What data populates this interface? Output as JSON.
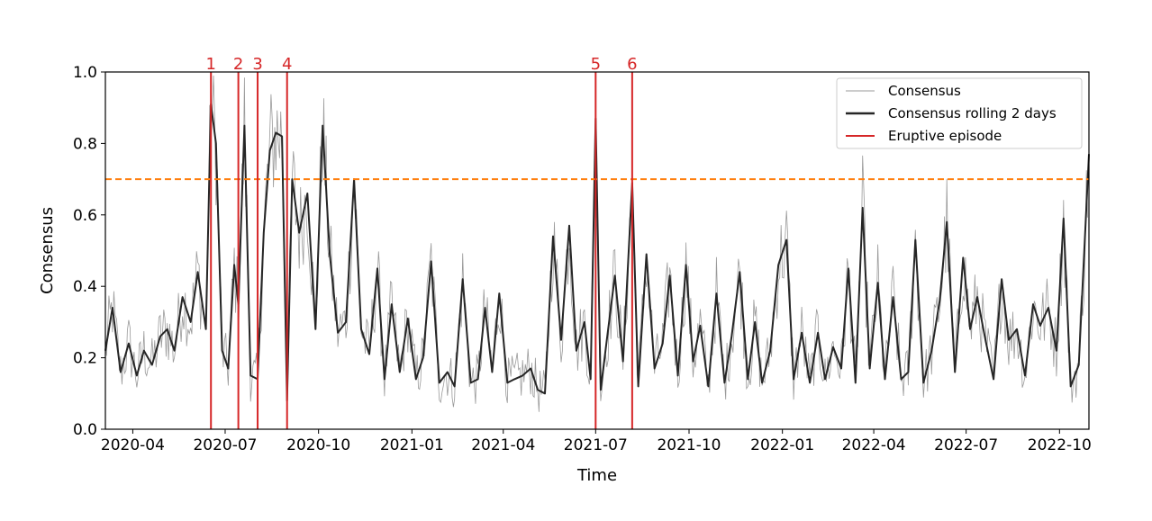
{
  "chart_data": {
    "type": "line",
    "xlabel": "Time",
    "ylabel": "Consensus",
    "xlim": [
      "2020-03-05",
      "2022-10-30"
    ],
    "ylim": [
      0.0,
      1.0
    ],
    "x_ticks": [
      "2020-04",
      "2020-07",
      "2020-10",
      "2021-01",
      "2021-04",
      "2021-07",
      "2021-10",
      "2022-01",
      "2022-04",
      "2022-07",
      "2022-10"
    ],
    "y_ticks": [
      "0.0",
      "0.2",
      "0.4",
      "0.6",
      "0.8",
      "1.0"
    ],
    "threshold": {
      "value": 0.7,
      "color": "#ff7f0e",
      "style": "dashed"
    },
    "legend": {
      "placement": "top-right",
      "entries": [
        "Consensus",
        "Consensus rolling 2 days",
        "Eruptive episode"
      ]
    },
    "colors": {
      "raw": "#9a9a9a",
      "rolling": "#262626",
      "episode": "#d62728",
      "threshold": "#ff7f0e"
    },
    "episodes": [
      {
        "label": "1",
        "date": "2020-06-17"
      },
      {
        "label": "2",
        "date": "2020-07-14"
      },
      {
        "label": "3",
        "date": "2020-08-02"
      },
      {
        "label": "4",
        "date": "2020-08-31"
      },
      {
        "label": "5",
        "date": "2021-07-01"
      },
      {
        "label": "6",
        "date": "2021-08-06"
      }
    ],
    "series": [
      {
        "name": "Consensus rolling 2 days",
        "x": [
          "2020-03-05",
          "2020-03-12",
          "2020-03-20",
          "2020-03-28",
          "2020-04-05",
          "2020-04-12",
          "2020-04-20",
          "2020-04-28",
          "2020-05-05",
          "2020-05-12",
          "2020-05-20",
          "2020-05-28",
          "2020-06-04",
          "2020-06-12",
          "2020-06-17",
          "2020-06-22",
          "2020-06-28",
          "2020-07-04",
          "2020-07-10",
          "2020-07-14",
          "2020-07-20",
          "2020-07-26",
          "2020-08-02",
          "2020-08-08",
          "2020-08-14",
          "2020-08-20",
          "2020-08-26",
          "2020-08-31",
          "2020-09-05",
          "2020-09-12",
          "2020-09-20",
          "2020-09-28",
          "2020-10-05",
          "2020-10-12",
          "2020-10-20",
          "2020-10-28",
          "2020-11-05",
          "2020-11-12",
          "2020-11-20",
          "2020-11-28",
          "2020-12-05",
          "2020-12-12",
          "2020-12-20",
          "2020-12-28",
          "2021-01-05",
          "2021-01-12",
          "2021-01-20",
          "2021-01-28",
          "2021-02-05",
          "2021-02-12",
          "2021-02-20",
          "2021-02-28",
          "2021-03-07",
          "2021-03-14",
          "2021-03-21",
          "2021-03-28",
          "2021-04-05",
          "2021-04-12",
          "2021-04-20",
          "2021-04-28",
          "2021-05-05",
          "2021-05-12",
          "2021-05-20",
          "2021-05-28",
          "2021-06-05",
          "2021-06-12",
          "2021-06-20",
          "2021-06-26",
          "2021-07-01",
          "2021-07-06",
          "2021-07-12",
          "2021-07-20",
          "2021-07-28",
          "2021-08-06",
          "2021-08-12",
          "2021-08-20",
          "2021-08-28",
          "2021-09-05",
          "2021-09-12",
          "2021-09-20",
          "2021-09-28",
          "2021-10-05",
          "2021-10-12",
          "2021-10-20",
          "2021-10-28",
          "2021-11-05",
          "2021-11-12",
          "2021-11-20",
          "2021-11-28",
          "2021-12-05",
          "2021-12-12",
          "2021-12-20",
          "2021-12-28",
          "2022-01-05",
          "2022-01-12",
          "2022-01-20",
          "2022-01-28",
          "2022-02-05",
          "2022-02-12",
          "2022-02-20",
          "2022-02-28",
          "2022-03-07",
          "2022-03-14",
          "2022-03-21",
          "2022-03-28",
          "2022-04-05",
          "2022-04-12",
          "2022-04-20",
          "2022-04-28",
          "2022-05-05",
          "2022-05-12",
          "2022-05-20",
          "2022-05-28",
          "2022-06-05",
          "2022-06-12",
          "2022-06-20",
          "2022-06-28",
          "2022-07-05",
          "2022-07-12",
          "2022-07-20",
          "2022-07-28",
          "2022-08-05",
          "2022-08-12",
          "2022-08-20",
          "2022-08-28",
          "2022-09-05",
          "2022-09-12",
          "2022-09-20",
          "2022-09-28",
          "2022-10-05",
          "2022-10-12",
          "2022-10-20",
          "2022-10-30"
        ],
        "values": [
          0.22,
          0.34,
          0.16,
          0.24,
          0.15,
          0.22,
          0.18,
          0.26,
          0.28,
          0.22,
          0.37,
          0.3,
          0.44,
          0.28,
          0.91,
          0.8,
          0.22,
          0.17,
          0.46,
          0.35,
          0.85,
          0.15,
          0.14,
          0.55,
          0.78,
          0.83,
          0.82,
          0.08,
          0.7,
          0.55,
          0.66,
          0.28,
          0.85,
          0.49,
          0.27,
          0.3,
          0.7,
          0.28,
          0.21,
          0.45,
          0.14,
          0.35,
          0.16,
          0.31,
          0.14,
          0.2,
          0.47,
          0.13,
          0.16,
          0.12,
          0.42,
          0.13,
          0.14,
          0.34,
          0.16,
          0.38,
          0.13,
          0.14,
          0.15,
          0.17,
          0.11,
          0.1,
          0.54,
          0.25,
          0.57,
          0.22,
          0.3,
          0.14,
          0.87,
          0.11,
          0.25,
          0.43,
          0.19,
          0.69,
          0.12,
          0.49,
          0.17,
          0.24,
          0.43,
          0.15,
          0.46,
          0.19,
          0.29,
          0.12,
          0.38,
          0.13,
          0.26,
          0.44,
          0.14,
          0.3,
          0.13,
          0.22,
          0.46,
          0.53,
          0.14,
          0.27,
          0.13,
          0.27,
          0.14,
          0.23,
          0.17,
          0.45,
          0.13,
          0.62,
          0.17,
          0.41,
          0.14,
          0.37,
          0.14,
          0.16,
          0.53,
          0.13,
          0.22,
          0.36,
          0.58,
          0.16,
          0.48,
          0.28,
          0.37,
          0.25,
          0.14,
          0.42,
          0.25,
          0.28,
          0.15,
          0.35,
          0.29,
          0.34,
          0.22,
          0.59,
          0.12,
          0.18,
          0.77
        ]
      }
    ]
  }
}
